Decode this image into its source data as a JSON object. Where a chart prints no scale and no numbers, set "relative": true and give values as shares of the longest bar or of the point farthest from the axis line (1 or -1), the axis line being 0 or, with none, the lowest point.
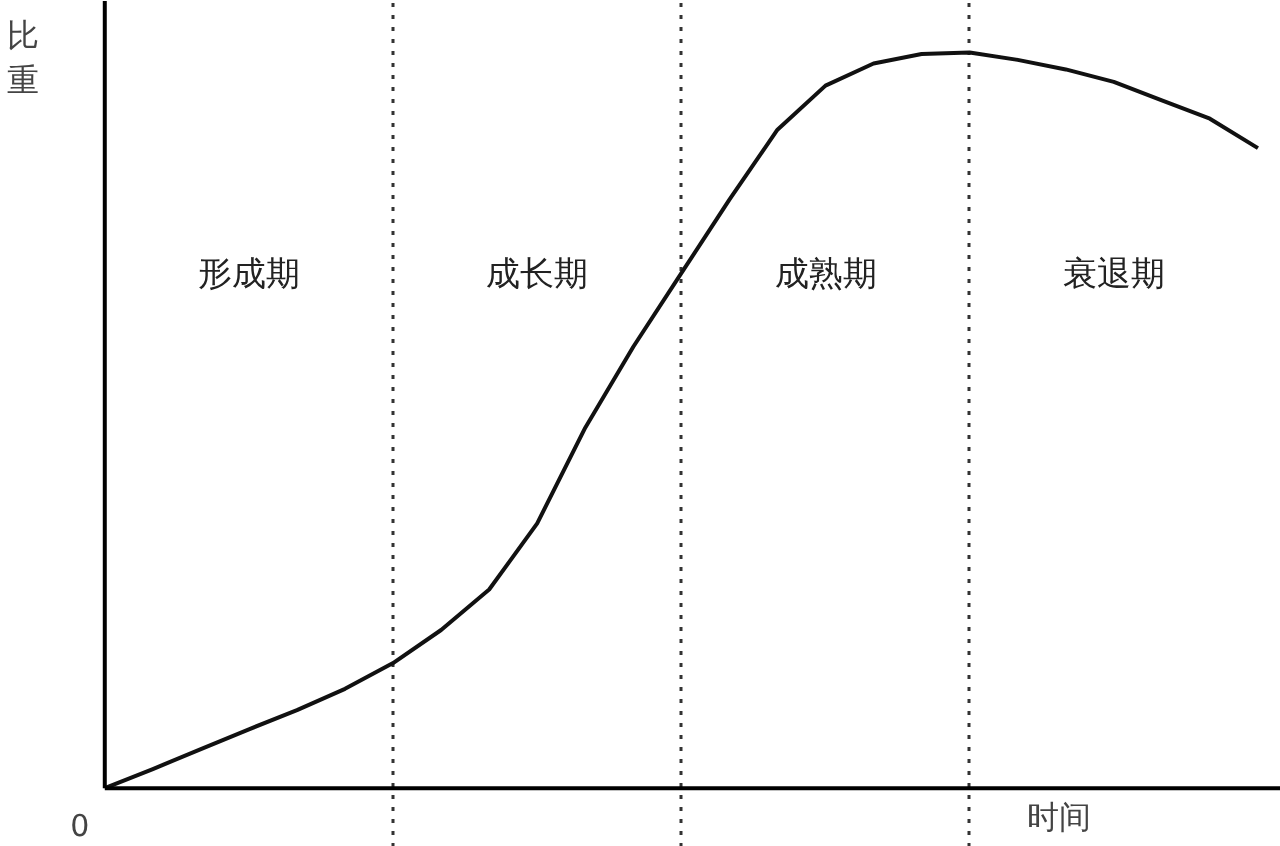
{
  "chart_data": {
    "type": "line",
    "relative": true,
    "xlabel": "时间",
    "ylabel": "比重",
    "annotations": [
      "0",
      "形成期",
      "成长期",
      "成熟期",
      "衰退期"
    ],
    "line_style": "solid",
    "grid": "x",
    "categories": [
      null,
      null,
      null,
      null,
      null,
      null,
      null,
      null,
      null,
      null,
      null,
      null,
      null,
      null,
      null,
      null,
      null,
      null,
      null,
      null,
      null,
      null,
      null,
      null,
      null
    ],
    "series": [
      {
        "color": "#111111",
        "values": [
          0,
          0.026,
          0.053,
          0.08,
          0.106,
          0.135,
          0.17,
          0.215,
          0.27,
          0.36,
          0.49,
          0.6,
          0.7,
          0.8,
          0.895,
          0.955,
          0.985,
          0.998,
          1.0,
          0.99,
          0.977,
          0.96,
          0.935,
          0.91,
          0.87
        ]
      }
    ],
    "tick_labels": false
  }
}
